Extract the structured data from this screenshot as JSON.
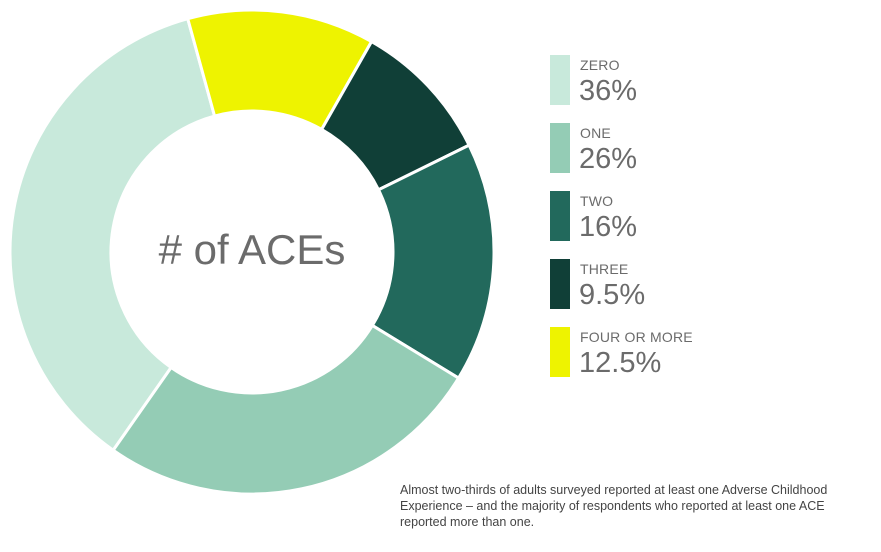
{
  "chart_data": {
    "type": "pie",
    "title": "# of ACEs",
    "categories": [
      "ZERO",
      "ONE",
      "TWO",
      "THREE",
      "FOUR OR MORE"
    ],
    "values": [
      36,
      26,
      16,
      9.5,
      12.5
    ],
    "value_labels": [
      "36%",
      "26%",
      "16%",
      "9.5%",
      "12.5%"
    ],
    "colors": [
      "#c8e9db",
      "#94ccb5",
      "#22695c",
      "#103f37",
      "#eef300"
    ],
    "donut": true,
    "legend_position": "right",
    "caption": "Almost two-thirds of adults surveyed reported at least one Adverse Childhood Experience – and the majority of respondents who reported at least one ACE reported more than one."
  }
}
